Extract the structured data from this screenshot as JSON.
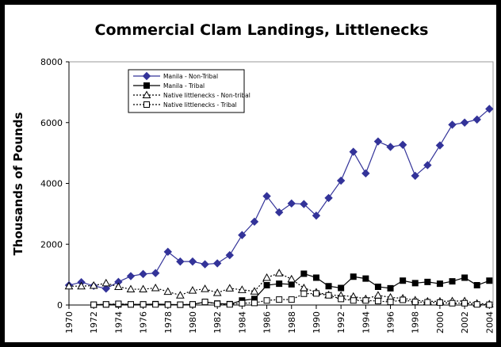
{
  "chart_data": {
    "type": "line",
    "title": "Commercial Clam Landings, Littlenecks",
    "y_label": "Thousands of Pounds",
    "x": [
      1970,
      1971,
      1972,
      1973,
      1974,
      1975,
      1976,
      1977,
      1978,
      1979,
      1980,
      1981,
      1982,
      1983,
      1984,
      1985,
      1986,
      1987,
      1988,
      1989,
      1990,
      1991,
      1992,
      1993,
      1994,
      1995,
      1996,
      1997,
      1998,
      1999,
      2000,
      2001,
      2002,
      2003,
      2004
    ],
    "xlim": [
      1970,
      2004.3
    ],
    "xticks": [
      1970,
      1972,
      1974,
      1976,
      1978,
      1980,
      1982,
      1984,
      1986,
      1988,
      1990,
      1992,
      1994,
      1996,
      1998,
      2000,
      2002,
      2004
    ],
    "ylim": [
      0,
      8000
    ],
    "yticks": [
      0,
      2000,
      4000,
      6000,
      8000
    ],
    "legend": "upper left",
    "series": [
      {
        "name": "Manila - Non-Tribal",
        "color": "#333399",
        "marker": "diamond",
        "dash": "solid",
        "values": [
          650,
          750,
          630,
          540,
          760,
          950,
          1020,
          1050,
          1750,
          1430,
          1430,
          1340,
          1370,
          1640,
          2300,
          2740,
          3580,
          3050,
          3340,
          3320,
          2940,
          3520,
          4090,
          5040,
          4330,
          5380,
          5200,
          5270,
          4250,
          4600,
          5250,
          5930,
          6000,
          6100,
          6450
        ]
      },
      {
        "name": "Manila - Tribal",
        "color": "#000000",
        "marker": "square",
        "dash": "solid",
        "values": [
          null,
          null,
          10,
          20,
          20,
          20,
          20,
          30,
          20,
          10,
          20,
          100,
          50,
          30,
          150,
          200,
          650,
          700,
          680,
          1030,
          900,
          620,
          560,
          930,
          870,
          600,
          550,
          800,
          720,
          760,
          700,
          780,
          900,
          650,
          800
        ]
      },
      {
        "name": "Native littlenecks - Non-tribal",
        "color": "#000000",
        "marker": "triangle-open",
        "dash": "dotted",
        "values": [
          620,
          620,
          640,
          720,
          600,
          520,
          520,
          560,
          440,
          320,
          480,
          530,
          400,
          550,
          500,
          450,
          900,
          1050,
          850,
          560,
          420,
          330,
          310,
          280,
          200,
          320,
          250,
          220,
          160,
          120,
          120,
          130,
          130,
          50,
          30
        ]
      },
      {
        "name": "Native littlenecks - Tribal",
        "color": "#000000",
        "marker": "square-open",
        "dash": "dotted",
        "values": [
          null,
          null,
          10,
          20,
          40,
          20,
          20,
          20,
          10,
          10,
          20,
          100,
          40,
          20,
          60,
          70,
          150,
          180,
          180,
          370,
          380,
          320,
          200,
          150,
          150,
          130,
          100,
          170,
          100,
          90,
          80,
          60,
          60,
          20,
          10
        ]
      }
    ]
  }
}
